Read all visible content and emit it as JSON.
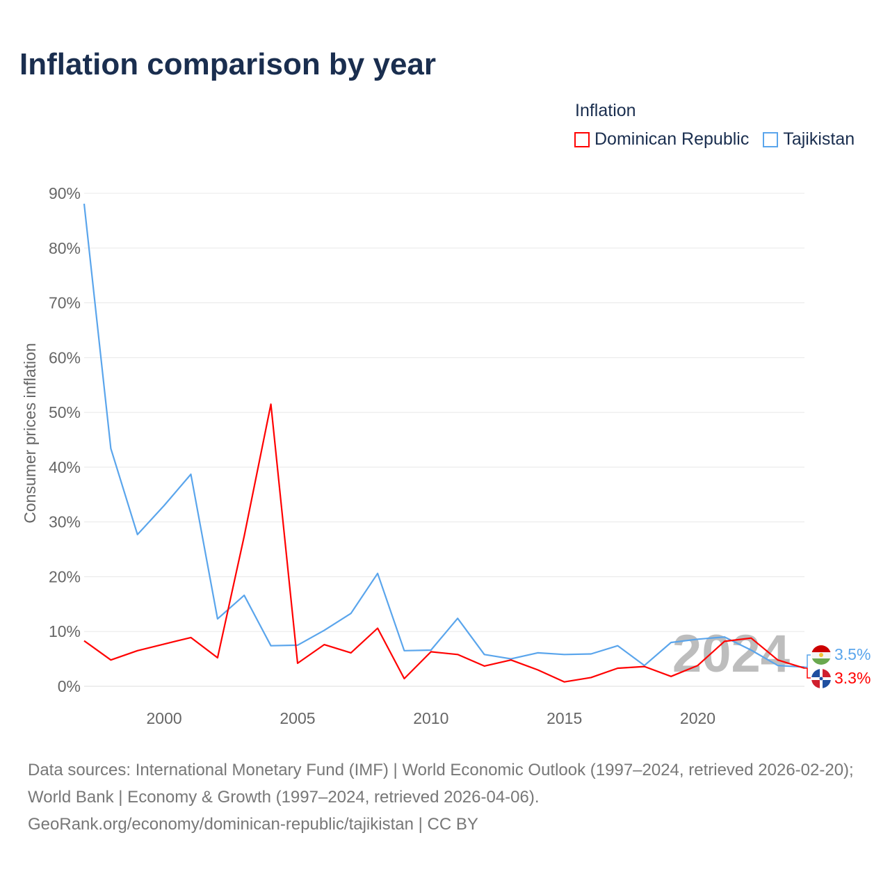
{
  "title": "Inflation comparison by year",
  "legend": {
    "title": "Inflation",
    "items": [
      {
        "label": "Dominican Republic",
        "color": "#ff0000"
      },
      {
        "label": "Tajikistan",
        "color": "#5aa5ec"
      }
    ]
  },
  "watermark_year": "2024",
  "end_labels": {
    "tajikistan": "3.5%",
    "dominican_republic": "3.3%"
  },
  "source": {
    "line1": "Data sources: International Monetary Fund (IMF) | World Economic Outlook (1997–2024, retrieved 2026-02-20); World Bank | Economy & Growth (1997–2024, retrieved 2026-04-06).",
    "line2": "GeoRank.org/economy/dominican-republic/tajikistan | CC BY"
  },
  "chart_data": {
    "type": "line",
    "title": "Inflation comparison by year",
    "ylabel": "Consumer prices inflation",
    "xlabel": "",
    "xlim": [
      1997,
      2024
    ],
    "ylim": [
      0,
      90
    ],
    "x_ticks": [
      "2000",
      "2005",
      "2010",
      "2015",
      "2020"
    ],
    "y_ticks": [
      "0%",
      "10%",
      "20%",
      "30%",
      "40%",
      "50%",
      "60%",
      "70%",
      "80%",
      "90%"
    ],
    "x": [
      1997,
      1998,
      1999,
      2000,
      2001,
      2002,
      2003,
      2004,
      2005,
      2006,
      2007,
      2008,
      2009,
      2010,
      2011,
      2012,
      2013,
      2014,
      2015,
      2016,
      2017,
      2018,
      2019,
      2020,
      2021,
      2022,
      2023,
      2024
    ],
    "series": [
      {
        "name": "Dominican Republic",
        "color": "#ff0000",
        "values": [
          8.3,
          4.8,
          6.5,
          7.7,
          8.9,
          5.2,
          27.4,
          51.5,
          4.2,
          7.6,
          6.1,
          10.6,
          1.4,
          6.3,
          5.8,
          3.7,
          4.8,
          3.0,
          0.8,
          1.6,
          3.3,
          3.6,
          1.8,
          3.8,
          8.2,
          8.8,
          4.8,
          3.3
        ]
      },
      {
        "name": "Tajikistan",
        "color": "#5aa5ec",
        "values": [
          88.1,
          43.4,
          27.7,
          33.0,
          38.7,
          12.3,
          16.6,
          7.4,
          7.5,
          10.2,
          13.3,
          20.6,
          6.5,
          6.6,
          12.4,
          5.8,
          5.0,
          6.1,
          5.8,
          5.9,
          7.4,
          3.8,
          8.0,
          8.6,
          9.0,
          6.6,
          3.8,
          3.5
        ]
      }
    ],
    "grid": true,
    "legend_position": "top-right"
  }
}
